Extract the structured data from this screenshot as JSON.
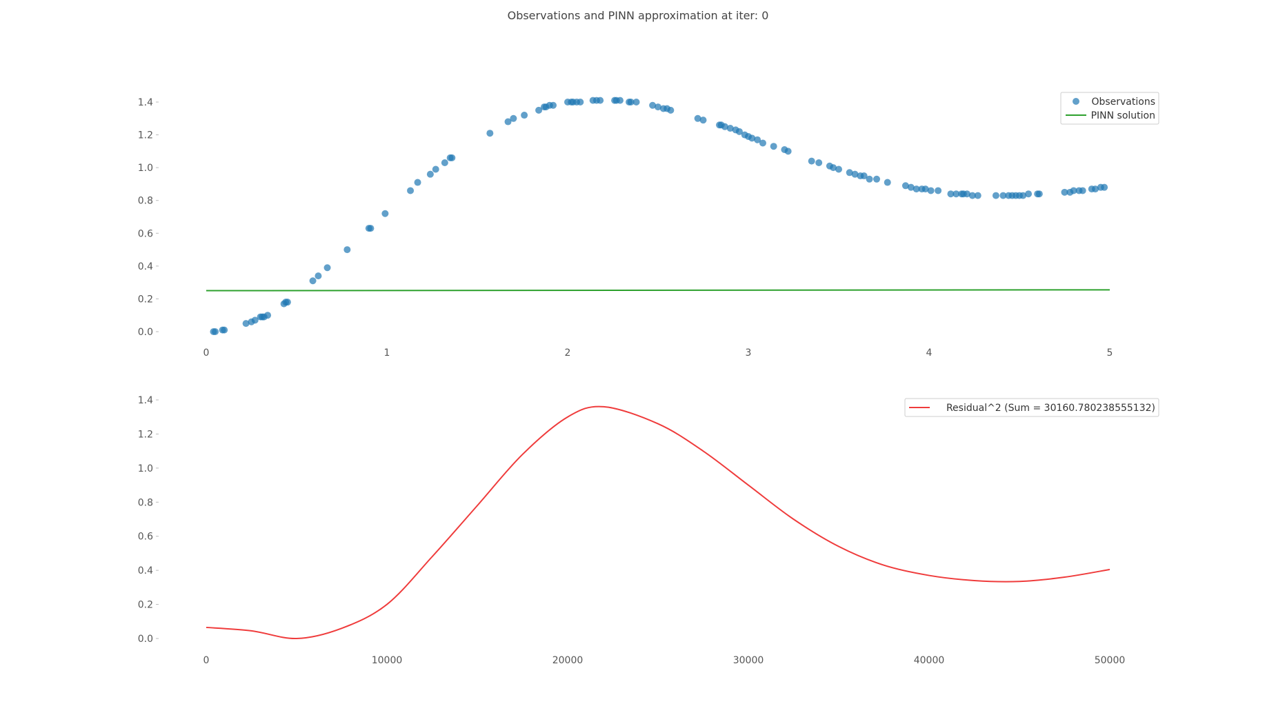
{
  "figure": {
    "suptitle": "Observations and PINN approximation at iter: 0"
  },
  "colors": {
    "observations": "#1f77b4",
    "pinn": "#2ca02c",
    "residual": "#ef3b3b"
  },
  "chart_data": [
    {
      "type": "scatter",
      "title": "",
      "xlabel": "",
      "ylabel": "",
      "xlim": [
        0,
        5
      ],
      "ylim": [
        -0.05,
        1.45
      ],
      "xticks": [
        0,
        1,
        2,
        3,
        4,
        5
      ],
      "xtick_labels": [
        "0",
        "1",
        "2",
        "3",
        "4",
        "5"
      ],
      "yticks": [
        0.0,
        0.2,
        0.4,
        0.6,
        0.8,
        1.0,
        1.2,
        1.4
      ],
      "ytick_labels": [
        "0.0",
        "0.2",
        "0.4",
        "0.6",
        "0.8",
        "1.0",
        "1.2",
        "1.4"
      ],
      "grid": false,
      "legend_position": "top-right",
      "series": [
        {
          "name": "Observations",
          "kind": "scatter",
          "x": [
            0.04,
            0.05,
            0.09,
            0.1,
            0.22,
            0.25,
            0.27,
            0.3,
            0.31,
            0.32,
            0.34,
            0.43,
            0.44,
            0.45,
            0.59,
            0.62,
            0.67,
            0.78,
            0.9,
            0.91,
            0.99,
            1.13,
            1.17,
            1.24,
            1.27,
            1.32,
            1.35,
            1.36,
            1.57,
            1.67,
            1.7,
            1.76,
            1.84,
            1.87,
            1.88,
            1.9,
            1.92,
            2.0,
            2.02,
            2.03,
            2.05,
            2.07,
            2.14,
            2.16,
            2.18,
            2.26,
            2.27,
            2.29,
            2.34,
            2.35,
            2.38,
            2.47,
            2.5,
            2.53,
            2.55,
            2.57,
            2.72,
            2.75,
            2.84,
            2.85,
            2.87,
            2.9,
            2.93,
            2.95,
            2.98,
            3.0,
            3.02,
            3.05,
            3.08,
            3.14,
            3.2,
            3.22,
            3.35,
            3.39,
            3.45,
            3.47,
            3.5,
            3.56,
            3.59,
            3.62,
            3.64,
            3.67,
            3.71,
            3.77,
            3.87,
            3.9,
            3.93,
            3.96,
            3.98,
            4.01,
            4.05,
            4.12,
            4.15,
            4.18,
            4.19,
            4.21,
            4.24,
            4.27,
            4.37,
            4.41,
            4.44,
            4.46,
            4.48,
            4.5,
            4.52,
            4.55,
            4.6,
            4.61,
            4.75,
            4.78,
            4.8,
            4.83,
            4.85,
            4.9,
            4.92,
            4.95,
            4.97
          ],
          "y": [
            0.0,
            0.0,
            0.01,
            0.01,
            0.05,
            0.06,
            0.07,
            0.09,
            0.09,
            0.09,
            0.1,
            0.17,
            0.18,
            0.18,
            0.31,
            0.34,
            0.39,
            0.5,
            0.63,
            0.63,
            0.72,
            0.86,
            0.91,
            0.96,
            0.99,
            1.03,
            1.06,
            1.06,
            1.21,
            1.28,
            1.3,
            1.32,
            1.35,
            1.37,
            1.37,
            1.38,
            1.38,
            1.4,
            1.4,
            1.4,
            1.4,
            1.4,
            1.41,
            1.41,
            1.41,
            1.41,
            1.41,
            1.41,
            1.4,
            1.4,
            1.4,
            1.38,
            1.37,
            1.36,
            1.36,
            1.35,
            1.3,
            1.29,
            1.26,
            1.26,
            1.25,
            1.24,
            1.23,
            1.22,
            1.2,
            1.19,
            1.18,
            1.17,
            1.15,
            1.13,
            1.11,
            1.1,
            1.04,
            1.03,
            1.01,
            1.0,
            0.99,
            0.97,
            0.96,
            0.95,
            0.95,
            0.93,
            0.93,
            0.91,
            0.89,
            0.88,
            0.87,
            0.87,
            0.87,
            0.86,
            0.86,
            0.84,
            0.84,
            0.84,
            0.84,
            0.84,
            0.83,
            0.83,
            0.83,
            0.83,
            0.83,
            0.83,
            0.83,
            0.83,
            0.83,
            0.84,
            0.84,
            0.84,
            0.85,
            0.85,
            0.86,
            0.86,
            0.86,
            0.87,
            0.87,
            0.88,
            0.88
          ]
        },
        {
          "name": "PINN solution",
          "kind": "line",
          "x": [
            0,
            5
          ],
          "y": [
            0.25,
            0.255
          ]
        }
      ]
    },
    {
      "type": "line",
      "title": "",
      "xlabel": "",
      "ylabel": "",
      "xlim": [
        -1000,
        52500
      ],
      "ylim": [
        -0.05,
        1.45
      ],
      "xticks": [
        0,
        10000,
        20000,
        30000,
        40000,
        50000
      ],
      "xtick_labels": [
        "0",
        "10000",
        "20000",
        "30000",
        "40000",
        "50000"
      ],
      "yticks": [
        0.0,
        0.2,
        0.4,
        0.6,
        0.8,
        1.0,
        1.2,
        1.4
      ],
      "ytick_labels": [
        "0.0",
        "0.2",
        "0.4",
        "0.6",
        "0.8",
        "1.0",
        "1.2",
        "1.4"
      ],
      "grid": false,
      "legend_position": "top-right",
      "series": [
        {
          "name": "Residual^2 (Sum = 30160.780238555132)",
          "kind": "line",
          "x": [
            0,
            2500,
            5000,
            7500,
            10000,
            12500,
            15000,
            17500,
            20000,
            22000,
            25000,
            27500,
            30000,
            32500,
            35000,
            37500,
            40000,
            42500,
            45000,
            47500,
            50000
          ],
          "y": [
            0.065,
            0.045,
            0.0,
            0.06,
            0.2,
            0.48,
            0.78,
            1.08,
            1.3,
            1.36,
            1.26,
            1.1,
            0.9,
            0.7,
            0.54,
            0.43,
            0.37,
            0.34,
            0.335,
            0.36,
            0.405
          ]
        }
      ]
    }
  ]
}
